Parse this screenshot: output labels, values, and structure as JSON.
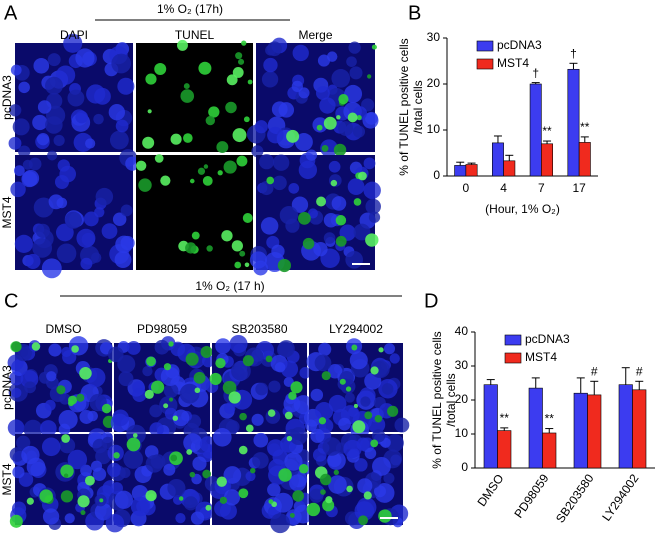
{
  "figure": {
    "panel_labels": [
      "A",
      "B",
      "C",
      "D"
    ],
    "panel_a": {
      "condition": "1% O₂ (17h)",
      "columns": [
        "DAPI",
        "TUNEL",
        "Merge"
      ],
      "rows": [
        "pcDNA3",
        "MST4"
      ]
    },
    "panel_c": {
      "condition": "1% O₂ (17 h)",
      "columns": [
        "DMSO",
        "PD98059",
        "SB203580",
        "LY294002"
      ],
      "rows": [
        "pcDNA3",
        "MST4"
      ]
    }
  },
  "chart_data": [
    {
      "type": "bar",
      "ylabel": [
        "% of TUNEL positive cells",
        "/total cells"
      ],
      "xlabel": "(Hour, 1% O₂)",
      "categories": [
        "0",
        "4",
        "7",
        "17"
      ],
      "series": [
        {
          "name": "pcDNA3",
          "color": "#3c3cf0",
          "values": [
            2.3,
            7.2,
            20,
            23.2
          ],
          "errors": [
            0.7,
            1.5,
            0.3,
            1.3
          ],
          "annotations": [
            null,
            null,
            "†",
            "†"
          ]
        },
        {
          "name": "MST4",
          "color": "#f02a1e",
          "values": [
            2.5,
            3.3,
            7,
            7.3
          ],
          "errors": [
            0.3,
            1.2,
            0.6,
            1.2
          ],
          "annotations": [
            null,
            null,
            "**",
            "**"
          ]
        }
      ],
      "ylim": [
        0,
        30
      ],
      "yticks": [
        0,
        10,
        20,
        30
      ],
      "legend": "upper left",
      "rotate_xticks": false
    },
    {
      "type": "bar",
      "ylabel": [
        "% of TUNEL positive cells",
        "/total cells"
      ],
      "categories": [
        "DMSO",
        "PD98059",
        "SB203580",
        "LY294002"
      ],
      "series": [
        {
          "name": "pcDNA3",
          "color": "#3c3cf0",
          "values": [
            24.5,
            23.5,
            22,
            24.5
          ],
          "errors": [
            1.5,
            3,
            4.5,
            5
          ],
          "annotations": [
            null,
            null,
            null,
            null
          ]
        },
        {
          "name": "MST4",
          "color": "#f02a1e",
          "values": [
            11,
            10.3,
            21.5,
            23
          ],
          "errors": [
            0.8,
            1.3,
            4,
            2.5
          ],
          "annotations": [
            "**",
            "**",
            "#",
            "#"
          ]
        }
      ],
      "ylim": [
        0,
        40
      ],
      "yticks": [
        0,
        10,
        20,
        30,
        40
      ],
      "legend": "upper left",
      "rotate_xticks": true
    }
  ]
}
